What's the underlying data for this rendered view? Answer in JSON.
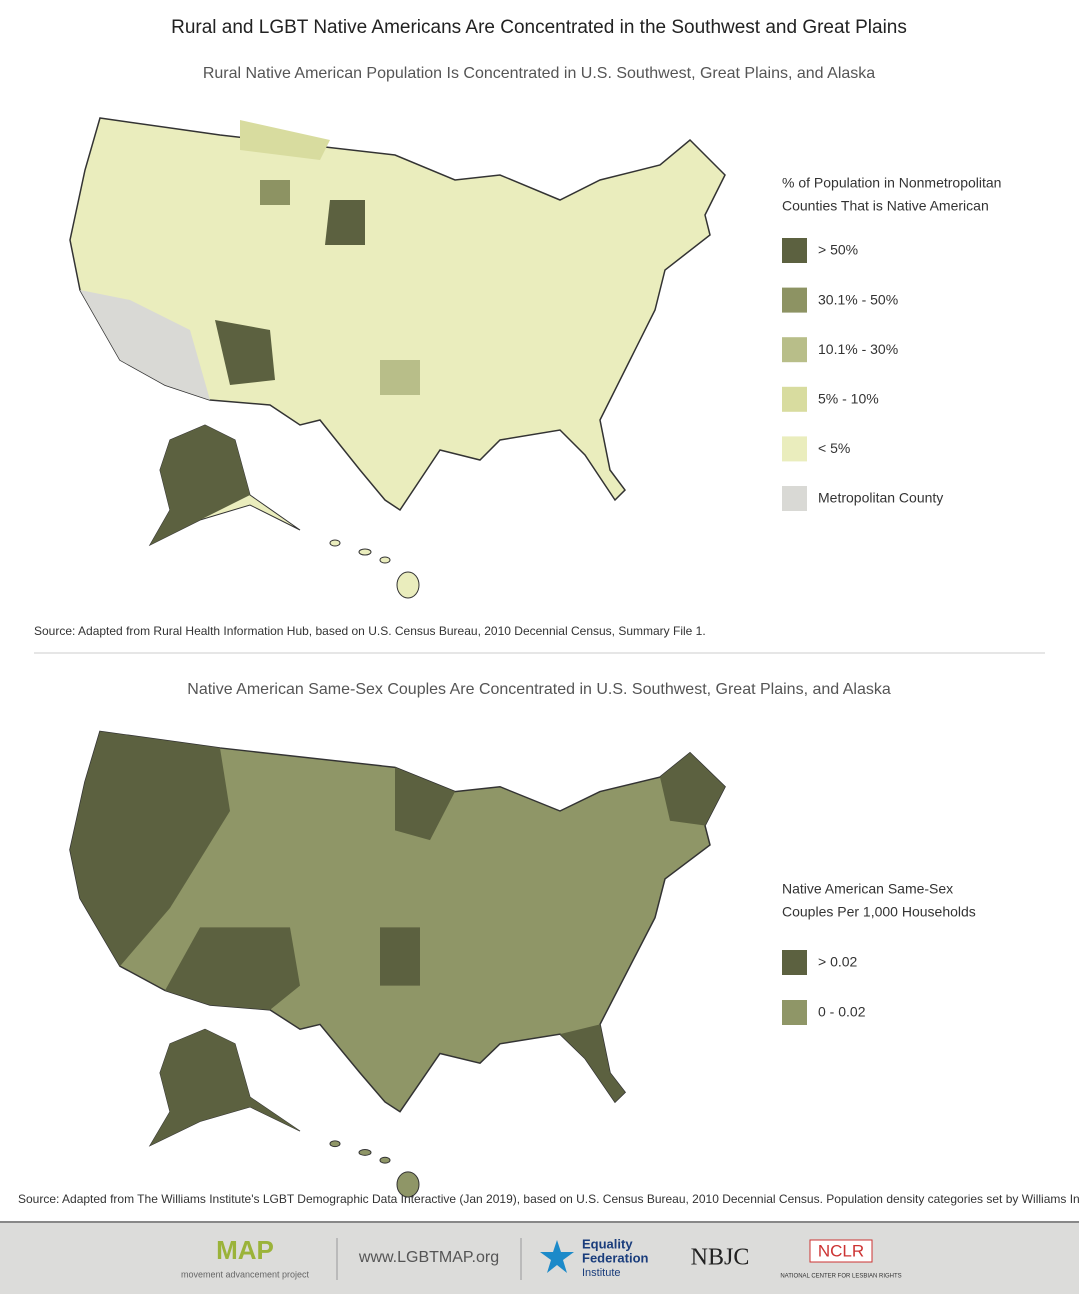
{
  "title": "Rural and LGBT Native Americans Are Concentrated in the Southwest and Great Plains",
  "panels": [
    {
      "subtitle": "Rural Native American Population Is Concentrated in U.S. Southwest, Great Plains, and Alaska",
      "legend": {
        "title": [
          "% of Population in Nonmetropolitan",
          "Counties That is Native American"
        ],
        "items": [
          {
            "label": "> 50%",
            "color": "#5c6140"
          },
          {
            "label": "30.1% - 50%",
            "color": "#8d9363"
          },
          {
            "label": "10.1% - 30%",
            "color": "#b8be89"
          },
          {
            "label": "5% - 10%",
            "color": "#d8dc9f"
          },
          {
            "label": "< 5%",
            "color": "#eaedbd"
          },
          {
            "label": "Metropolitan County",
            "color": "#d9d9d5"
          }
        ]
      },
      "source": "Source: Adapted from Rural Health Information Hub, based on U.S. Census Bureau, 2010 Decennial Census, Summary File 1."
    },
    {
      "subtitle": "Native American Same-Sex Couples Are Concentrated in U.S. Southwest, Great Plains, and Alaska",
      "legend": {
        "title": [
          "Native American Same-Sex",
          "Couples Per 1,000 Households"
        ],
        "items": [
          {
            "label": "> 0.02",
            "color": "#5c6140"
          },
          {
            "label": "0 - 0.02",
            "color": "#8f9667"
          }
        ]
      },
      "source": "Source: Adapted from The Williams Institute's LGBT Demographic Data Interactive (Jan 2019), based on U.S. Census Bureau, 2010 Decennial Census. Population density categories set by Williams Institute."
    }
  ],
  "footer": {
    "map_logo": "MAP",
    "map_tagline": "movement advancement project",
    "url": "www.LGBTMAP.org",
    "efi": [
      "Equality",
      "Federation",
      "Institute"
    ],
    "nbjc": "NBJC",
    "nclr": "NCLR",
    "nclr_tagline": "NATIONAL CENTER FOR LESBIAN RIGHTS"
  }
}
